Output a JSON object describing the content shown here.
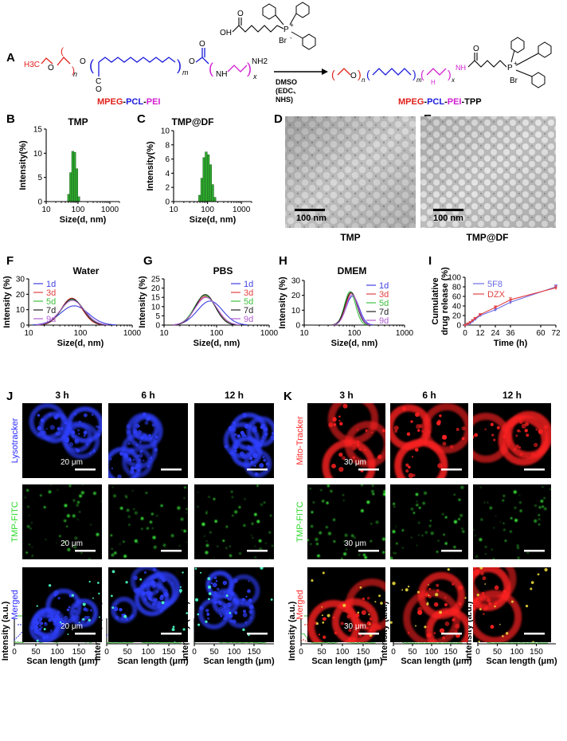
{
  "panel_A": {
    "label": "A",
    "left_names": [
      {
        "text": "MPEG",
        "color": "#e0201b"
      },
      {
        "text": "-",
        "color": "#000000"
      },
      {
        "text": "PCL",
        "color": "#1a1adb"
      },
      {
        "text": "-",
        "color": "#000000"
      },
      {
        "text": "PEI",
        "color": "#d21fd2"
      }
    ],
    "right_names": [
      {
        "text": "MPEG",
        "color": "#e0201b"
      },
      {
        "text": "-",
        "color": "#000000"
      },
      {
        "text": "PCL",
        "color": "#1a1adb"
      },
      {
        "text": "-",
        "color": "#000000"
      },
      {
        "text": "PEI",
        "color": "#d21fd2"
      },
      {
        "text": "-TPP",
        "color": "#000000"
      }
    ],
    "left_groups": {
      "h3c": "H3C",
      "o1": "O",
      "o2": "O",
      "n": "n",
      "m": "m",
      "x": "x",
      "nh": "NH",
      "nh2": "NH2",
      "c": "C",
      "o3": "O",
      "o4": "O"
    },
    "reagent": {
      "oh": "OH",
      "p": "P",
      "plus": "+",
      "br": "Br",
      "minus": "-",
      "o": "O"
    },
    "arrow_conditions": [
      "DMSO",
      "(EDC、",
      "NHS)"
    ],
    "right_groups": {
      "o": "O",
      "n": "n",
      "m": "m",
      "x": "x",
      "nh": "NH",
      "nh2": "NH",
      "p": "P",
      "plus": "+",
      "br": "Br"
    }
  },
  "chart_data": [
    {
      "id": "B",
      "type": "bar",
      "title": "TMP",
      "xlabel": "Size(d, nm)",
      "ylabel": "Intensity(%)",
      "x_scale": "log",
      "xlim": [
        10,
        2000
      ],
      "ylim": [
        0,
        15
      ],
      "xticks": [
        10,
        100,
        1000
      ],
      "yticks": [
        0,
        5,
        10,
        15
      ],
      "bar_color": "#2ea82e",
      "bars": [
        {
          "x": 50.7,
          "y": 1.5
        },
        {
          "x": 58.8,
          "y": 6.0
        },
        {
          "x": 68.1,
          "y": 10.4
        },
        {
          "x": 78.8,
          "y": 10.2
        },
        {
          "x": 91.3,
          "y": 6.8
        },
        {
          "x": 105.7,
          "y": 1.0
        }
      ]
    },
    {
      "id": "C",
      "type": "bar",
      "title": "TMP@DF",
      "xlabel": "Size(d, nm)",
      "ylabel": "Intensity(%)",
      "x_scale": "log",
      "xlim": [
        10,
        2000
      ],
      "ylim": [
        0,
        10
      ],
      "xticks": [
        10,
        100,
        1000
      ],
      "yticks": [
        0,
        2,
        4,
        6,
        8,
        10
      ],
      "bar_color": "#2ea82e",
      "bars": [
        {
          "x": 58.8,
          "y": 0.9
        },
        {
          "x": 68.1,
          "y": 3.3
        },
        {
          "x": 78.8,
          "y": 6.2
        },
        {
          "x": 91.3,
          "y": 7.0
        },
        {
          "x": 105.7,
          "y": 6.6
        },
        {
          "x": 122.4,
          "y": 5.2
        },
        {
          "x": 141.8,
          "y": 2.4
        },
        {
          "x": 164.2,
          "y": 0.6
        }
      ]
    },
    {
      "id": "F",
      "type": "line",
      "title": "Water",
      "xlabel": "Size(d, nm)",
      "ylabel": "Intensity (%)",
      "x_scale": "log",
      "xlim": [
        10,
        1000
      ],
      "ylim": [
        0,
        30
      ],
      "xticks": [
        10,
        100,
        1000
      ],
      "yticks": [
        0,
        10,
        20,
        30
      ],
      "legend_position": "top-left",
      "series": [
        {
          "name": "1d",
          "color": "#3f3fe3",
          "peak": 76,
          "height": 12.5,
          "width": 0.27
        },
        {
          "name": "3d",
          "color": "#e34242",
          "peak": 68,
          "height": 17.5,
          "width": 0.2
        },
        {
          "name": "5d",
          "color": "#3fc13f",
          "peak": 71,
          "height": 16.5,
          "width": 0.22
        },
        {
          "name": "7d",
          "color": "#222222",
          "peak": 69,
          "height": 17.0,
          "width": 0.21
        },
        {
          "name": "9d",
          "color": "#b05dd2",
          "peak": 70,
          "height": 16.0,
          "width": 0.23
        }
      ]
    },
    {
      "id": "G",
      "type": "line",
      "title": "PBS",
      "xlabel": "Size(d, nm)",
      "ylabel": "Intensity (%)",
      "x_scale": "log",
      "xlim": [
        10,
        1000
      ],
      "ylim": [
        0,
        25
      ],
      "xticks": [
        10,
        100,
        1000
      ],
      "yticks": [
        0,
        5,
        10,
        15,
        20,
        25
      ],
      "legend_position": "top-right",
      "series": [
        {
          "name": "1d",
          "color": "#3f3fe3",
          "peak": 75,
          "height": 13.0,
          "width": 0.24
        },
        {
          "name": "3d",
          "color": "#e34242",
          "peak": 62,
          "height": 15.5,
          "width": 0.2
        },
        {
          "name": "5d",
          "color": "#3fc13f",
          "peak": 60,
          "height": 16.0,
          "width": 0.2
        },
        {
          "name": "7d",
          "color": "#222222",
          "peak": 61,
          "height": 16.5,
          "width": 0.19
        },
        {
          "name": "9d",
          "color": "#b05dd2",
          "peak": 63,
          "height": 15.0,
          "width": 0.21
        }
      ]
    },
    {
      "id": "H",
      "type": "line",
      "title": "DMEM",
      "xlabel": "Size(d, nm)",
      "ylabel": "Intensity (%)",
      "x_scale": "log",
      "xlim": [
        10,
        1000
      ],
      "ylim": [
        0,
        30
      ],
      "xticks": [
        10,
        100,
        1000
      ],
      "yticks": [
        0,
        10,
        20,
        30
      ],
      "legend_position": "top-right",
      "series": [
        {
          "name": "1d",
          "color": "#3f3fe3",
          "peak": 92,
          "height": 19.5,
          "width": 0.13
        },
        {
          "name": "3d",
          "color": "#e34242",
          "peak": 88,
          "height": 21.5,
          "width": 0.12
        },
        {
          "name": "5d",
          "color": "#3fc13f",
          "peak": 82,
          "height": 22.5,
          "width": 0.11
        },
        {
          "name": "7d",
          "color": "#222222",
          "peak": 86,
          "height": 22.0,
          "width": 0.12
        },
        {
          "name": "9d",
          "color": "#b05dd2",
          "peak": 90,
          "height": 20.5,
          "width": 0.12
        }
      ]
    },
    {
      "id": "I",
      "type": "line",
      "title": "",
      "xlabel": "Time (h)",
      "ylabel": "Cumulative drug release (%)",
      "x_scale": "linear",
      "xlim": [
        0,
        72
      ],
      "ylim": [
        0,
        100
      ],
      "xticks": [
        0,
        12,
        24,
        36,
        60,
        72
      ],
      "yticks": [
        0,
        20,
        40,
        60,
        80,
        100
      ],
      "legend_position": "top-left",
      "series": [
        {
          "name": "5F8",
          "color": "#6a6ae6",
          "x": [
            0,
            2,
            4,
            6,
            8,
            12,
            24,
            36,
            72
          ],
          "y": [
            0,
            2,
            4,
            8,
            12,
            20,
            32,
            48,
            80
          ],
          "err": [
            1,
            1,
            1,
            1.5,
            2,
            2,
            3,
            4,
            4
          ]
        },
        {
          "name": "DZX",
          "color": "#e34242",
          "x": [
            0,
            2,
            4,
            6,
            8,
            12,
            24,
            36,
            72
          ],
          "y": [
            0,
            3,
            6,
            10,
            14,
            22,
            37,
            53,
            78
          ],
          "err": [
            1,
            1,
            1,
            1.5,
            2,
            2,
            3,
            4,
            4
          ]
        }
      ]
    },
    {
      "id": "J-3h",
      "type": "line",
      "title": "",
      "xlabel": "Scan length (μm)",
      "ylabel": "Intensity (a.u.)",
      "xlim": [
        0,
        200
      ],
      "xticks": [
        0,
        50,
        100,
        150
      ],
      "series": [
        {
          "name": "TMP",
          "color": "#3fc13f",
          "style": "solid",
          "base": 0.06,
          "amp": 0.06,
          "peaks": [
            [
              40,
              0.2
            ],
            [
              80,
              0.15
            ],
            [
              125,
              0.2
            ],
            [
              150,
              0.15
            ]
          ]
        },
        {
          "name": "Lysotracker",
          "color": "#1a1adb",
          "style": "dashed",
          "base": 0.15,
          "amp": 0.1,
          "peaks": [
            [
              20,
              0.5
            ],
            [
              55,
              0.8
            ],
            [
              80,
              0.5
            ],
            [
              120,
              0.8
            ],
            [
              155,
              0.85
            ],
            [
              170,
              0.5
            ]
          ]
        }
      ]
    },
    {
      "id": "J-6h",
      "type": "line",
      "title": "",
      "xlabel": "Scan length (μm)",
      "ylabel": "Intensity (a.u.)",
      "xlim": [
        0,
        200
      ],
      "xticks": [
        0,
        50,
        100,
        150
      ],
      "series": [
        {
          "name": "TMP",
          "color": "#3fc13f",
          "style": "solid",
          "base": 0.04,
          "amp": 0.03,
          "peaks": [
            [
              75,
              0.1
            ]
          ]
        },
        {
          "name": "Lysotracker",
          "color": "#1a1adb",
          "style": "dashed",
          "base": 0.25,
          "amp": 0.1,
          "peaks": [
            [
              15,
              0.6
            ],
            [
              40,
              0.55
            ],
            [
              70,
              0.7
            ],
            [
              100,
              0.7
            ],
            [
              130,
              0.3
            ]
          ]
        }
      ]
    },
    {
      "id": "J-12h",
      "type": "line",
      "title": "",
      "xlabel": "Scan length (μm)",
      "ylabel": "Intensity (a.u.)",
      "xlim": [
        0,
        200
      ],
      "xticks": [
        0,
        50,
        100,
        150
      ],
      "series": [
        {
          "name": "TMP",
          "color": "#3fc13f",
          "style": "solid",
          "base": 0.05,
          "amp": 0.04,
          "peaks": [
            [
              20,
              0.2
            ],
            [
              45,
              0.25
            ]
          ]
        },
        {
          "name": "Lysotracker",
          "color": "#1a1adb",
          "style": "dashed",
          "base": 0.1,
          "amp": 0.1,
          "peaks": [
            [
              10,
              0.9
            ],
            [
              30,
              0.85
            ],
            [
              60,
              0.6
            ],
            [
              90,
              0.3
            ],
            [
              110,
              0.35
            ],
            [
              135,
              0.2
            ]
          ]
        }
      ]
    },
    {
      "id": "K-3h",
      "type": "line",
      "title": "",
      "xlabel": "Scan length (μm)",
      "ylabel": "Intensity (a.u.)",
      "xlim": [
        0,
        200
      ],
      "xticks": [
        0,
        50,
        100,
        150
      ],
      "series": [
        {
          "name": "TMP",
          "color": "#3fc13f",
          "style": "solid",
          "base": 0.04,
          "amp": 0.03,
          "peaks": [
            [
              5,
              0.4
            ],
            [
              100,
              0.12
            ]
          ]
        },
        {
          "name": "Mito-tracker",
          "color": "#e0201b",
          "style": "dashed",
          "base": 0.12,
          "amp": 0.12,
          "peaks": [
            [
              60,
              0.5
            ],
            [
              95,
              0.7
            ],
            [
              130,
              0.75
            ],
            [
              155,
              0.85
            ],
            [
              165,
              0.7
            ]
          ]
        }
      ]
    },
    {
      "id": "K-6h",
      "type": "line",
      "title": "",
      "xlabel": "Scan length (μm)",
      "ylabel": "Intensity (a.u.)",
      "xlim": [
        0,
        200
      ],
      "xticks": [
        0,
        50,
        100,
        150
      ],
      "series": [
        {
          "name": "TMP",
          "color": "#3fc13f",
          "style": "solid",
          "base": 0.03,
          "amp": 0.02,
          "peaks": [
            [
              5,
              0.5
            ]
          ]
        },
        {
          "name": "Mito-tracker",
          "color": "#e0201b",
          "style": "dashed",
          "base": 0.1,
          "amp": 0.08,
          "peaks": [
            [
              30,
              0.35
            ],
            [
              60,
              0.4
            ],
            [
              95,
              0.3
            ],
            [
              125,
              0.4
            ],
            [
              155,
              0.3
            ]
          ]
        }
      ]
    },
    {
      "id": "K-12h",
      "type": "line",
      "title": "",
      "xlabel": "Scan length (μm)",
      "ylabel": "Intensity (a.u.)",
      "xlim": [
        0,
        200
      ],
      "xticks": [
        0,
        50,
        100,
        150
      ],
      "series": [
        {
          "name": "TMP",
          "color": "#3fc13f",
          "style": "solid",
          "base": 0.03,
          "amp": 0.02,
          "peaks": [
            [
              5,
              0.6
            ]
          ]
        },
        {
          "name": "Mito-tracker",
          "color": "#e0201b",
          "style": "dashed",
          "base": 0.1,
          "amp": 0.1,
          "peaks": [
            [
              30,
              0.3
            ],
            [
              65,
              0.35
            ],
            [
              95,
              0.5
            ],
            [
              115,
              0.55
            ],
            [
              140,
              0.3
            ]
          ]
        }
      ]
    }
  ],
  "tem": {
    "D": {
      "label": "D",
      "scale_bar": "100 nm",
      "caption": "TMP"
    },
    "E": {
      "label": "E",
      "scale_bar": "100 nm",
      "caption": "TMP@DF"
    }
  },
  "panel_labels": {
    "B": "B",
    "C": "C",
    "F": "F",
    "G": "G",
    "H": "H",
    "I": "I",
    "J": "J",
    "K": "K"
  },
  "microscopy": {
    "J": {
      "times": [
        "3 h",
        "6 h",
        "12 h"
      ],
      "rows": [
        {
          "label": "Lysotracker",
          "color": "#2727ff",
          "glow": "#2f3fff"
        },
        {
          "label": "TMP-FITC",
          "color": "#2bd92b",
          "glow": "#3cf03c"
        },
        {
          "label": "Merged",
          "color": "#2727ff",
          "glow": "#2f3fff"
        }
      ],
      "scale_bar": "20 μm"
    },
    "K": {
      "times": [
        "3 h",
        "6 h",
        "12 h"
      ],
      "rows": [
        {
          "label": "Mito-Tracker",
          "color": "#ff2a2a",
          "glow": "#ff2020"
        },
        {
          "label": "TMP-FITC",
          "color": "#2bd92b",
          "glow": "#3cf03c"
        },
        {
          "label": "Merged",
          "color": "#ff2a2a",
          "glow": "#ff2020"
        }
      ],
      "scale_bar": "30 μm"
    }
  }
}
